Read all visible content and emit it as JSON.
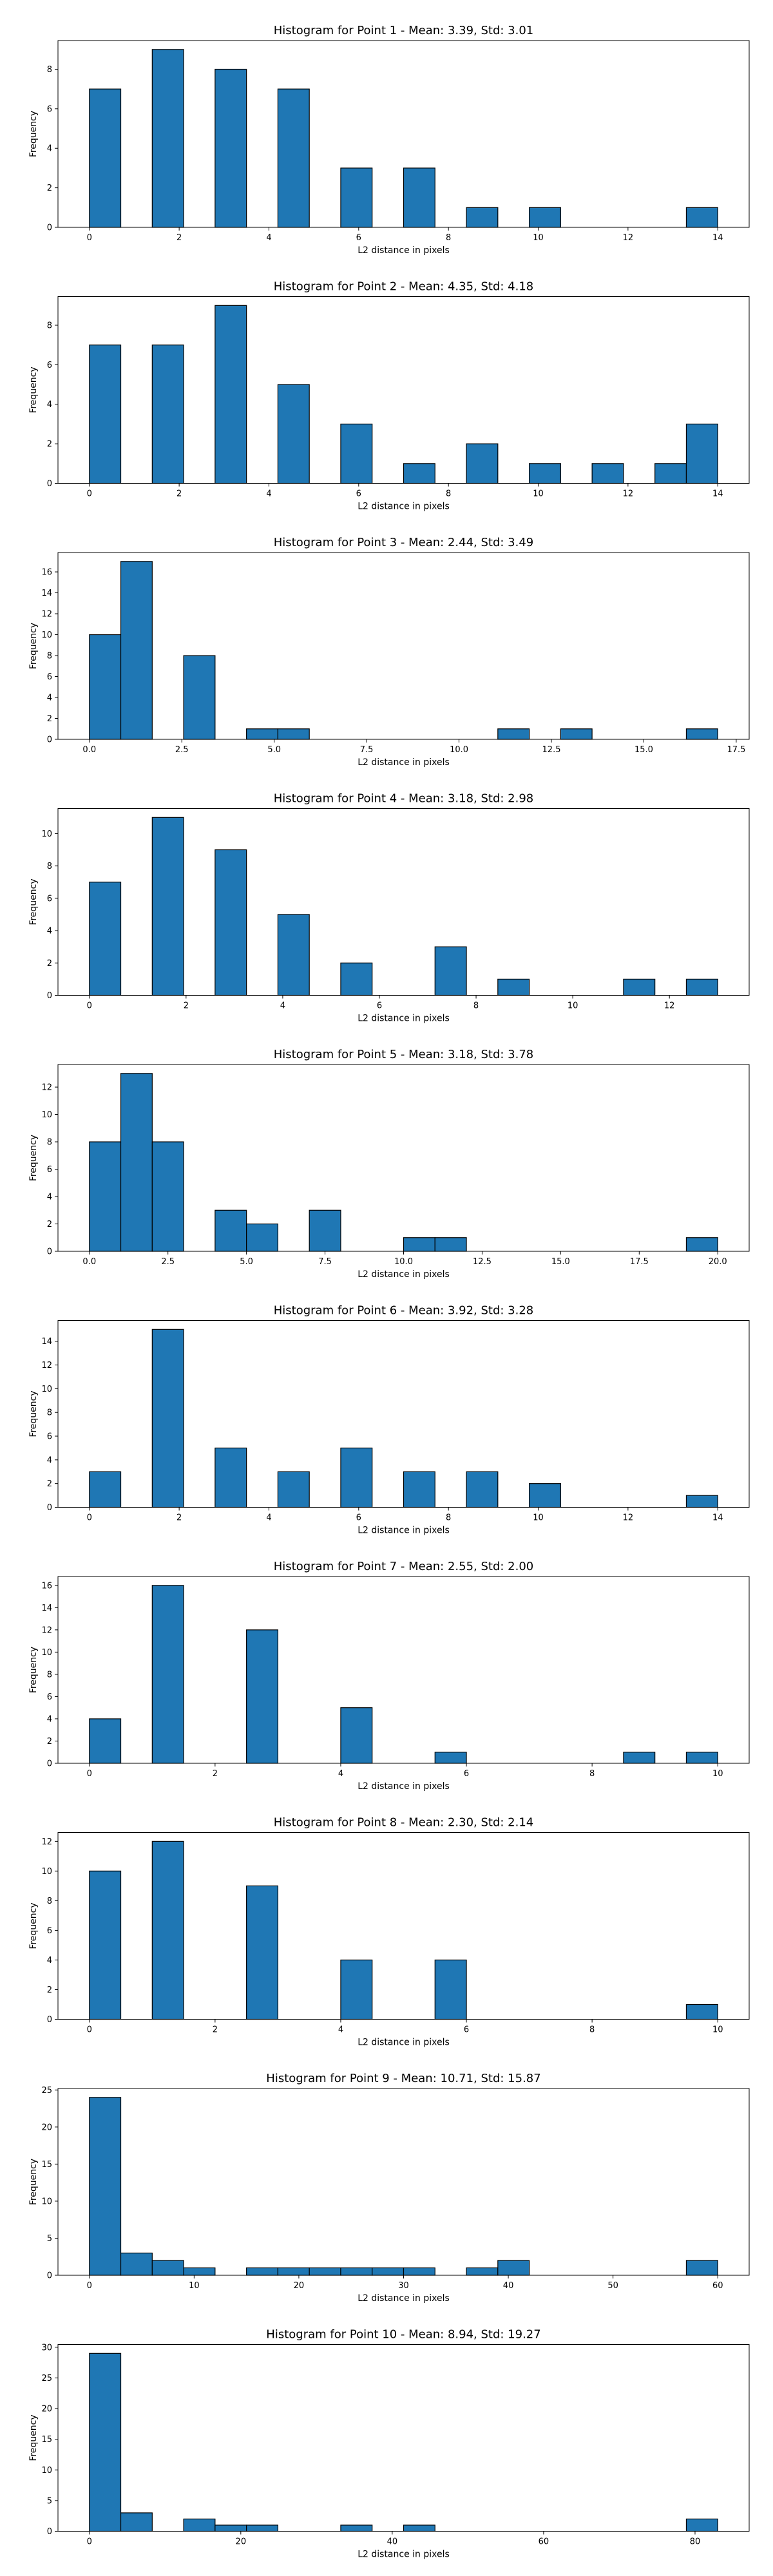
{
  "chart_data": [
    {
      "type": "bar",
      "title": "Histogram for Point 1 - Mean: 3.39, Std: 3.01",
      "xlabel": "L2 distance in pixels",
      "ylabel": "Frequency",
      "bar_color": "#1f77b4",
      "edge_color": "#000000",
      "grid": false,
      "xlim": [
        -0.7,
        14.7
      ],
      "ylim": [
        0,
        9.45
      ],
      "xticks": [
        0,
        2,
        4,
        6,
        8,
        10,
        12,
        14
      ],
      "xtick_labels": [
        "0",
        "2",
        "4",
        "6",
        "8",
        "10",
        "12",
        "14"
      ],
      "yticks": [
        0,
        2,
        4,
        6,
        8
      ],
      "ytick_labels": [
        "0",
        "2",
        "4",
        "6",
        "8"
      ],
      "bars": [
        {
          "x0": 0.0,
          "x1": 0.7,
          "value": 7
        },
        {
          "x0": 1.4,
          "x1": 2.1,
          "value": 9
        },
        {
          "x0": 2.8,
          "x1": 3.5,
          "value": 8
        },
        {
          "x0": 4.2,
          "x1": 4.9,
          "value": 7
        },
        {
          "x0": 5.6,
          "x1": 6.3,
          "value": 3
        },
        {
          "x0": 7.0,
          "x1": 7.7,
          "value": 3
        },
        {
          "x0": 8.4,
          "x1": 9.1,
          "value": 1
        },
        {
          "x0": 9.8,
          "x1": 10.5,
          "value": 1
        },
        {
          "x0": 13.3,
          "x1": 14.0,
          "value": 1
        }
      ]
    },
    {
      "type": "bar",
      "title": "Histogram for Point 2 - Mean: 4.35, Std: 4.18",
      "xlabel": "L2 distance in pixels",
      "ylabel": "Frequency",
      "bar_color": "#1f77b4",
      "edge_color": "#000000",
      "grid": false,
      "xlim": [
        -0.7,
        14.7
      ],
      "ylim": [
        0,
        9.45
      ],
      "xticks": [
        0,
        2,
        4,
        6,
        8,
        10,
        12,
        14
      ],
      "xtick_labels": [
        "0",
        "2",
        "4",
        "6",
        "8",
        "10",
        "12",
        "14"
      ],
      "yticks": [
        0,
        2,
        4,
        6,
        8
      ],
      "ytick_labels": [
        "0",
        "2",
        "4",
        "6",
        "8"
      ],
      "bars": [
        {
          "x0": 0.0,
          "x1": 0.7,
          "value": 7
        },
        {
          "x0": 1.4,
          "x1": 2.1,
          "value": 7
        },
        {
          "x0": 2.8,
          "x1": 3.5,
          "value": 9
        },
        {
          "x0": 4.2,
          "x1": 4.9,
          "value": 5
        },
        {
          "x0": 5.6,
          "x1": 6.3,
          "value": 3
        },
        {
          "x0": 7.0,
          "x1": 7.7,
          "value": 1
        },
        {
          "x0": 8.4,
          "x1": 9.1,
          "value": 2
        },
        {
          "x0": 9.8,
          "x1": 10.5,
          "value": 1
        },
        {
          "x0": 11.2,
          "x1": 11.9,
          "value": 1
        },
        {
          "x0": 12.6,
          "x1": 13.3,
          "value": 1
        },
        {
          "x0": 13.3,
          "x1": 14.0,
          "value": 3
        }
      ]
    },
    {
      "type": "bar",
      "title": "Histogram for Point 3 - Mean: 2.44, Std: 3.49",
      "xlabel": "L2 distance in pixels",
      "ylabel": "Frequency",
      "bar_color": "#1f77b4",
      "edge_color": "#000000",
      "grid": false,
      "xlim": [
        -0.85,
        17.85
      ],
      "ylim": [
        0,
        17.85
      ],
      "xticks": [
        0,
        2.5,
        5,
        7.5,
        10,
        12.5,
        15,
        17.5
      ],
      "xtick_labels": [
        "0.0",
        "2.5",
        "5.0",
        "7.5",
        "10.0",
        "12.5",
        "15.0",
        "17.5"
      ],
      "yticks": [
        0,
        2,
        4,
        6,
        8,
        10,
        12,
        14,
        16
      ],
      "ytick_labels": [
        "0",
        "2",
        "4",
        "6",
        "8",
        "10",
        "12",
        "14",
        "16"
      ],
      "bars": [
        {
          "x0": 0.0,
          "x1": 0.85,
          "value": 10
        },
        {
          "x0": 0.85,
          "x1": 1.7,
          "value": 17
        },
        {
          "x0": 2.55,
          "x1": 3.4,
          "value": 8
        },
        {
          "x0": 4.25,
          "x1": 5.1,
          "value": 1
        },
        {
          "x0": 5.1,
          "x1": 5.95,
          "value": 1
        },
        {
          "x0": 11.05,
          "x1": 11.9,
          "value": 1
        },
        {
          "x0": 12.75,
          "x1": 13.6,
          "value": 1
        },
        {
          "x0": 16.15,
          "x1": 17.0,
          "value": 1
        }
      ]
    },
    {
      "type": "bar",
      "title": "Histogram for Point 4 - Mean: 3.18, Std: 2.98",
      "xlabel": "L2 distance in pixels",
      "ylabel": "Frequency",
      "bar_color": "#1f77b4",
      "edge_color": "#000000",
      "grid": false,
      "xlim": [
        -0.65,
        13.65
      ],
      "ylim": [
        0,
        11.55
      ],
      "xticks": [
        0,
        2,
        4,
        6,
        8,
        10,
        12
      ],
      "xtick_labels": [
        "0",
        "2",
        "4",
        "6",
        "8",
        "10",
        "12"
      ],
      "yticks": [
        0,
        2,
        4,
        6,
        8,
        10
      ],
      "ytick_labels": [
        "0",
        "2",
        "4",
        "6",
        "8",
        "10"
      ],
      "bars": [
        {
          "x0": 0.0,
          "x1": 0.65,
          "value": 7
        },
        {
          "x0": 1.3,
          "x1": 1.95,
          "value": 11
        },
        {
          "x0": 2.6,
          "x1": 3.25,
          "value": 9
        },
        {
          "x0": 3.9,
          "x1": 4.55,
          "value": 5
        },
        {
          "x0": 5.2,
          "x1": 5.85,
          "value": 2
        },
        {
          "x0": 7.15,
          "x1": 7.8,
          "value": 3
        },
        {
          "x0": 8.45,
          "x1": 9.1,
          "value": 1
        },
        {
          "x0": 11.05,
          "x1": 11.7,
          "value": 1
        },
        {
          "x0": 12.35,
          "x1": 13.0,
          "value": 1
        }
      ]
    },
    {
      "type": "bar",
      "title": "Histogram for Point 5 - Mean: 3.18, Std: 3.78",
      "xlabel": "L2 distance in pixels",
      "ylabel": "Frequency",
      "bar_color": "#1f77b4",
      "edge_color": "#000000",
      "grid": false,
      "xlim": [
        -1.0,
        21.0
      ],
      "ylim": [
        0,
        13.65
      ],
      "xticks": [
        0,
        2.5,
        5,
        7.5,
        10,
        12.5,
        15,
        17.5,
        20
      ],
      "xtick_labels": [
        "0.0",
        "2.5",
        "5.0",
        "7.5",
        "10.0",
        "12.5",
        "15.0",
        "17.5",
        "20.0"
      ],
      "yticks": [
        0,
        2,
        4,
        6,
        8,
        10,
        12
      ],
      "ytick_labels": [
        "0",
        "2",
        "4",
        "6",
        "8",
        "10",
        "12"
      ],
      "bars": [
        {
          "x0": 0.0,
          "x1": 1.0,
          "value": 8
        },
        {
          "x0": 1.0,
          "x1": 2.0,
          "value": 13
        },
        {
          "x0": 2.0,
          "x1": 3.0,
          "value": 8
        },
        {
          "x0": 4.0,
          "x1": 5.0,
          "value": 3
        },
        {
          "x0": 5.0,
          "x1": 6.0,
          "value": 2
        },
        {
          "x0": 7.0,
          "x1": 8.0,
          "value": 3
        },
        {
          "x0": 10.0,
          "x1": 11.0,
          "value": 1
        },
        {
          "x0": 11.0,
          "x1": 12.0,
          "value": 1
        },
        {
          "x0": 19.0,
          "x1": 20.0,
          "value": 1
        }
      ]
    },
    {
      "type": "bar",
      "title": "Histogram for Point 6 - Mean: 3.92, Std: 3.28",
      "xlabel": "L2 distance in pixels",
      "ylabel": "Frequency",
      "bar_color": "#1f77b4",
      "edge_color": "#000000",
      "grid": false,
      "xlim": [
        -0.7,
        14.7
      ],
      "ylim": [
        0,
        15.75
      ],
      "xticks": [
        0,
        2,
        4,
        6,
        8,
        10,
        12,
        14
      ],
      "xtick_labels": [
        "0",
        "2",
        "4",
        "6",
        "8",
        "10",
        "12",
        "14"
      ],
      "yticks": [
        0,
        2,
        4,
        6,
        8,
        10,
        12,
        14
      ],
      "ytick_labels": [
        "0",
        "2",
        "4",
        "6",
        "8",
        "10",
        "12",
        "14"
      ],
      "bars": [
        {
          "x0": 0.0,
          "x1": 0.7,
          "value": 3
        },
        {
          "x0": 1.4,
          "x1": 2.1,
          "value": 15
        },
        {
          "x0": 2.8,
          "x1": 3.5,
          "value": 5
        },
        {
          "x0": 4.2,
          "x1": 4.9,
          "value": 3
        },
        {
          "x0": 5.6,
          "x1": 6.3,
          "value": 5
        },
        {
          "x0": 7.0,
          "x1": 7.7,
          "value": 3
        },
        {
          "x0": 8.4,
          "x1": 9.1,
          "value": 3
        },
        {
          "x0": 9.8,
          "x1": 10.5,
          "value": 2
        },
        {
          "x0": 13.3,
          "x1": 14.0,
          "value": 1
        }
      ]
    },
    {
      "type": "bar",
      "title": "Histogram for Point 7 - Mean: 2.55, Std: 2.00",
      "xlabel": "L2 distance in pixels",
      "ylabel": "Frequency",
      "bar_color": "#1f77b4",
      "edge_color": "#000000",
      "grid": false,
      "xlim": [
        -0.5,
        10.5
      ],
      "ylim": [
        0,
        16.8
      ],
      "xticks": [
        0,
        2,
        4,
        6,
        8,
        10
      ],
      "xtick_labels": [
        "0",
        "2",
        "4",
        "6",
        "8",
        "10"
      ],
      "yticks": [
        0,
        2,
        4,
        6,
        8,
        10,
        12,
        14,
        16
      ],
      "ytick_labels": [
        "0",
        "2",
        "4",
        "6",
        "8",
        "10",
        "12",
        "14",
        "16"
      ],
      "bars": [
        {
          "x0": 0.0,
          "x1": 0.5,
          "value": 4
        },
        {
          "x0": 1.0,
          "x1": 1.5,
          "value": 16
        },
        {
          "x0": 2.5,
          "x1": 3.0,
          "value": 12
        },
        {
          "x0": 4.0,
          "x1": 4.5,
          "value": 5
        },
        {
          "x0": 5.5,
          "x1": 6.0,
          "value": 1
        },
        {
          "x0": 8.5,
          "x1": 9.0,
          "value": 1
        },
        {
          "x0": 9.5,
          "x1": 10.0,
          "value": 1
        }
      ]
    },
    {
      "type": "bar",
      "title": "Histogram for Point 8 - Mean: 2.30, Std: 2.14",
      "xlabel": "L2 distance in pixels",
      "ylabel": "Frequency",
      "bar_color": "#1f77b4",
      "edge_color": "#000000",
      "grid": false,
      "xlim": [
        -0.5,
        10.5
      ],
      "ylim": [
        0,
        12.6
      ],
      "xticks": [
        0,
        2,
        4,
        6,
        8,
        10
      ],
      "xtick_labels": [
        "0",
        "2",
        "4",
        "6",
        "8",
        "10"
      ],
      "yticks": [
        0,
        2,
        4,
        6,
        8,
        10,
        12
      ],
      "ytick_labels": [
        "0",
        "2",
        "4",
        "6",
        "8",
        "10",
        "12"
      ],
      "bars": [
        {
          "x0": 0.0,
          "x1": 0.5,
          "value": 10
        },
        {
          "x0": 1.0,
          "x1": 1.5,
          "value": 12
        },
        {
          "x0": 2.5,
          "x1": 3.0,
          "value": 9
        },
        {
          "x0": 4.0,
          "x1": 4.5,
          "value": 4
        },
        {
          "x0": 5.5,
          "x1": 6.0,
          "value": 4
        },
        {
          "x0": 9.5,
          "x1": 10.0,
          "value": 1
        }
      ]
    },
    {
      "type": "bar",
      "title": "Histogram for Point 9 - Mean: 10.71, Std: 15.87",
      "xlabel": "L2 distance in pixels",
      "ylabel": "Frequency",
      "bar_color": "#1f77b4",
      "edge_color": "#000000",
      "grid": false,
      "xlim": [
        -3.0,
        63.0
      ],
      "ylim": [
        0,
        25.2
      ],
      "xticks": [
        0,
        10,
        20,
        30,
        40,
        50,
        60
      ],
      "xtick_labels": [
        "0",
        "10",
        "20",
        "30",
        "40",
        "50",
        "60"
      ],
      "yticks": [
        0,
        5,
        10,
        15,
        20,
        25
      ],
      "ytick_labels": [
        "0",
        "5",
        "10",
        "15",
        "20",
        "25"
      ],
      "bars": [
        {
          "x0": 0,
          "x1": 3,
          "value": 24
        },
        {
          "x0": 3,
          "x1": 6,
          "value": 3
        },
        {
          "x0": 6,
          "x1": 9,
          "value": 2
        },
        {
          "x0": 9,
          "x1": 12,
          "value": 1
        },
        {
          "x0": 15,
          "x1": 18,
          "value": 1
        },
        {
          "x0": 18,
          "x1": 21,
          "value": 1
        },
        {
          "x0": 21,
          "x1": 24,
          "value": 1
        },
        {
          "x0": 24,
          "x1": 27,
          "value": 1
        },
        {
          "x0": 27,
          "x1": 30,
          "value": 1
        },
        {
          "x0": 30,
          "x1": 33,
          "value": 1
        },
        {
          "x0": 36,
          "x1": 39,
          "value": 1
        },
        {
          "x0": 39,
          "x1": 42,
          "value": 2
        },
        {
          "x0": 57,
          "x1": 60,
          "value": 2
        }
      ]
    },
    {
      "type": "bar",
      "title": "Histogram for Point 10 - Mean: 8.94, Std: 19.27",
      "xlabel": "L2 distance in pixels",
      "ylabel": "Frequency",
      "bar_color": "#1f77b4",
      "edge_color": "#000000",
      "grid": false,
      "xlim": [
        -4.15,
        87.15
      ],
      "ylim": [
        0,
        30.45
      ],
      "xticks": [
        0,
        20,
        40,
        60,
        80
      ],
      "xtick_labels": [
        "0",
        "20",
        "40",
        "60",
        "80"
      ],
      "yticks": [
        0,
        5,
        10,
        15,
        20,
        25,
        30
      ],
      "ytick_labels": [
        "0",
        "5",
        "10",
        "15",
        "20",
        "25",
        "30"
      ],
      "bars": [
        {
          "x0": 0.0,
          "x1": 4.15,
          "value": 29
        },
        {
          "x0": 4.15,
          "x1": 8.3,
          "value": 3
        },
        {
          "x0": 12.45,
          "x1": 16.6,
          "value": 2
        },
        {
          "x0": 16.6,
          "x1": 20.75,
          "value": 1
        },
        {
          "x0": 20.75,
          "x1": 24.9,
          "value": 1
        },
        {
          "x0": 33.2,
          "x1": 37.35,
          "value": 1
        },
        {
          "x0": 41.5,
          "x1": 45.65,
          "value": 1
        },
        {
          "x0": 78.85,
          "x1": 83.0,
          "value": 2
        }
      ]
    }
  ]
}
